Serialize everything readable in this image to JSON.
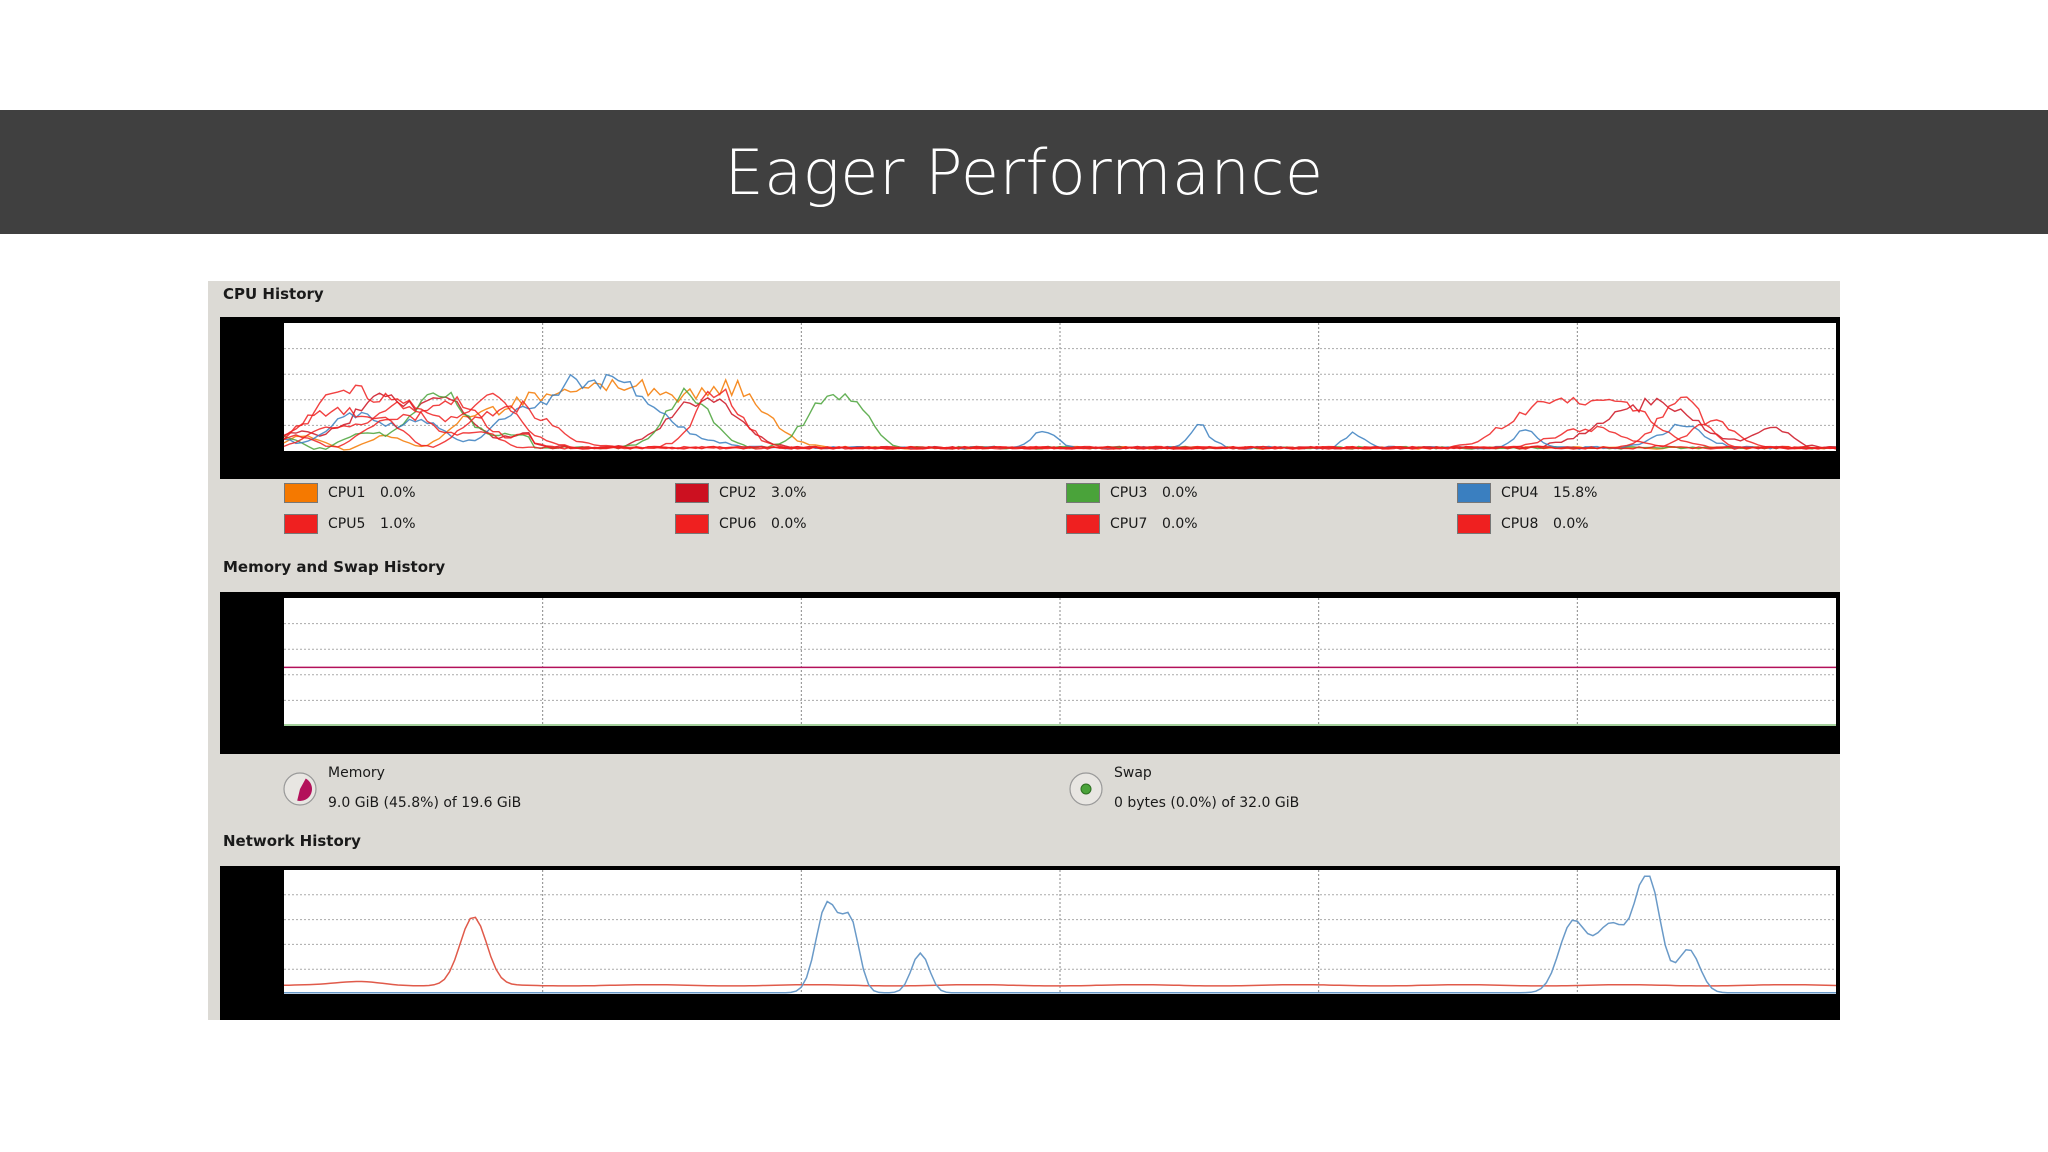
{
  "slide": {
    "title": "Eager Performance"
  },
  "cpu": {
    "section_title": "CPU History",
    "legend": [
      {
        "label": "CPU1",
        "value": "0.0%",
        "color": "#f57900"
      },
      {
        "label": "CPU2",
        "value": "3.0%",
        "color": "#cc1020"
      },
      {
        "label": "CPU3",
        "value": "0.0%",
        "color": "#4aa33a"
      },
      {
        "label": "CPU4",
        "value": "15.8%",
        "color": "#3a7fc0"
      },
      {
        "label": "CPU5",
        "value": "1.0%",
        "color": "#ef2020"
      },
      {
        "label": "CPU6",
        "value": "0.0%",
        "color": "#ef2020"
      },
      {
        "label": "CPU7",
        "value": "0.0%",
        "color": "#ef2020"
      },
      {
        "label": "CPU8",
        "value": "0.0%",
        "color": "#ef2020"
      }
    ]
  },
  "memory": {
    "section_title": "Memory and Swap History",
    "memory_label": "Memory",
    "memory_value": "9.0 GiB (45.8%) of 19.6 GiB",
    "memory_percent": 45.8,
    "memory_color": "#b3115a",
    "swap_label": "Swap",
    "swap_value": "0 bytes (0.0%) of 32.0 GiB",
    "swap_percent": 0.0,
    "swap_color": "#4aa33a"
  },
  "network": {
    "section_title": "Network History",
    "receiving_color": "#6a9ac8",
    "sending_color": "#e05a4a"
  }
}
